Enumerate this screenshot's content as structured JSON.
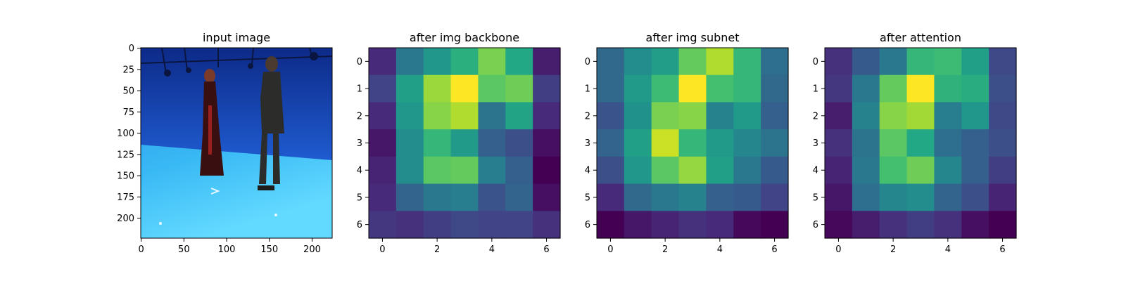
{
  "chart_data": [
    {
      "type": "image",
      "title": "input image",
      "xticks": [
        "0",
        "50",
        "100",
        "150",
        "200"
      ],
      "yticks": [
        "0",
        "25",
        "50",
        "75",
        "100",
        "125",
        "150",
        "175",
        "200"
      ],
      "xlim": [
        -0.5,
        223.5
      ],
      "ylim": [
        223.5,
        -0.5
      ],
      "image": {
        "description_colors": {
          "backdrop": "#1c4fc0",
          "floor": "#35b4f0",
          "floor_light": "#5fd8ff"
        }
      }
    },
    {
      "type": "heatmap",
      "title": "after img backbone",
      "colormap": "viridis",
      "xticks": [
        "0",
        "2",
        "4",
        "6"
      ],
      "yticks": [
        "0",
        "1",
        "2",
        "3",
        "4",
        "5",
        "6"
      ],
      "values": [
        [
          0.12,
          0.4,
          0.52,
          0.63,
          0.8,
          0.6,
          0.08
        ],
        [
          0.2,
          0.56,
          0.85,
          1.0,
          0.74,
          0.78,
          0.18
        ],
        [
          0.12,
          0.52,
          0.82,
          0.88,
          0.38,
          0.58,
          0.12
        ],
        [
          0.06,
          0.48,
          0.66,
          0.54,
          0.3,
          0.24,
          0.04
        ],
        [
          0.1,
          0.48,
          0.74,
          0.76,
          0.42,
          0.3,
          0.0
        ],
        [
          0.12,
          0.32,
          0.4,
          0.42,
          0.26,
          0.32,
          0.04
        ],
        [
          0.16,
          0.14,
          0.18,
          0.22,
          0.2,
          0.2,
          0.14
        ]
      ]
    },
    {
      "type": "heatmap",
      "title": "after img subnet",
      "colormap": "viridis",
      "xticks": [
        "0",
        "2",
        "4",
        "6"
      ],
      "yticks": [
        "0",
        "1",
        "2",
        "3",
        "4",
        "5",
        "6"
      ],
      "values": [
        [
          0.34,
          0.48,
          0.55,
          0.76,
          0.88,
          0.66,
          0.36
        ],
        [
          0.34,
          0.54,
          0.68,
          1.0,
          0.7,
          0.66,
          0.34
        ],
        [
          0.26,
          0.5,
          0.8,
          0.82,
          0.44,
          0.54,
          0.3
        ],
        [
          0.32,
          0.56,
          0.92,
          0.66,
          0.54,
          0.46,
          0.38
        ],
        [
          0.24,
          0.52,
          0.74,
          0.84,
          0.56,
          0.4,
          0.28
        ],
        [
          0.12,
          0.34,
          0.4,
          0.44,
          0.3,
          0.28,
          0.2
        ],
        [
          0.0,
          0.06,
          0.1,
          0.14,
          0.12,
          0.02,
          0.0
        ]
      ]
    },
    {
      "type": "heatmap",
      "title": "after attention",
      "colormap": "viridis",
      "xticks": [
        "0",
        "2",
        "4",
        "6"
      ],
      "yticks": [
        "0",
        "1",
        "2",
        "3",
        "4",
        "5",
        "6"
      ],
      "values": [
        [
          0.14,
          0.28,
          0.4,
          0.66,
          0.68,
          0.56,
          0.22
        ],
        [
          0.16,
          0.4,
          0.76,
          1.0,
          0.64,
          0.62,
          0.24
        ],
        [
          0.08,
          0.44,
          0.82,
          0.86,
          0.42,
          0.52,
          0.22
        ],
        [
          0.14,
          0.38,
          0.74,
          0.6,
          0.36,
          0.3,
          0.24
        ],
        [
          0.1,
          0.4,
          0.7,
          0.78,
          0.46,
          0.3,
          0.18
        ],
        [
          0.06,
          0.36,
          0.46,
          0.48,
          0.32,
          0.24,
          0.1
        ],
        [
          0.02,
          0.08,
          0.14,
          0.18,
          0.14,
          0.04,
          0.0
        ]
      ]
    }
  ]
}
